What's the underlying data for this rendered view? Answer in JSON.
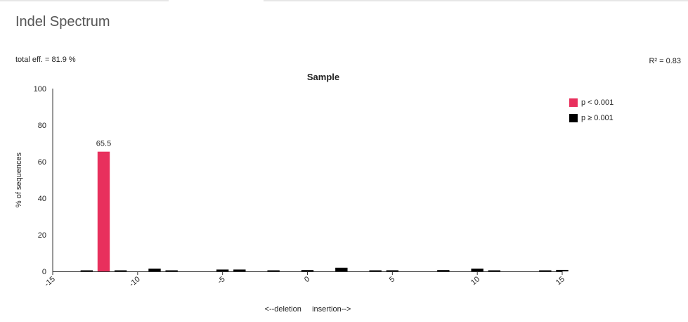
{
  "header": {
    "title": "Indel Spectrum",
    "total_eff": "total eff. = 81.9 %",
    "r2": "R² = 0.83"
  },
  "legend": {
    "items": [
      {
        "label": "p < 0.001",
        "color": "#e8305d"
      },
      {
        "label": "p ≥ 0.001",
        "color": "#000000"
      }
    ]
  },
  "chart_data": {
    "type": "bar",
    "title": "Sample",
    "xlabel": "<--deletion     insertion-->",
    "ylabel": "% of sequences",
    "xlim": [
      -15,
      15
    ],
    "ylim": [
      0,
      100
    ],
    "x_ticks": [
      -15,
      -10,
      -5,
      0,
      5,
      10,
      15
    ],
    "y_ticks": [
      0,
      20,
      40,
      60,
      80,
      100
    ],
    "grid": false,
    "legend_position": "top-right",
    "colors": {
      "significant": "#e8305d",
      "not_significant": "#000000"
    },
    "bars": [
      {
        "x": -13,
        "value": 0.3,
        "significant": false
      },
      {
        "x": -12,
        "value": 65.5,
        "significant": true,
        "label": "65.5"
      },
      {
        "x": -11,
        "value": 0.3,
        "significant": false
      },
      {
        "x": -9,
        "value": 1.5,
        "significant": false
      },
      {
        "x": -8,
        "value": 0.2,
        "significant": false
      },
      {
        "x": -5,
        "value": 1.0,
        "significant": false
      },
      {
        "x": -4,
        "value": 1.0,
        "significant": false
      },
      {
        "x": -2,
        "value": 0.2,
        "significant": false
      },
      {
        "x": 0,
        "value": 0.7,
        "significant": false
      },
      {
        "x": 2,
        "value": 2.0,
        "significant": false
      },
      {
        "x": 4,
        "value": 0.4,
        "significant": false
      },
      {
        "x": 5,
        "value": 0.6,
        "significant": false
      },
      {
        "x": 8,
        "value": 0.7,
        "significant": false
      },
      {
        "x": 10,
        "value": 1.5,
        "significant": false
      },
      {
        "x": 11,
        "value": 0.2,
        "significant": false
      },
      {
        "x": 14,
        "value": 0.2,
        "significant": false
      },
      {
        "x": 15,
        "value": 0.8,
        "significant": false
      }
    ]
  }
}
